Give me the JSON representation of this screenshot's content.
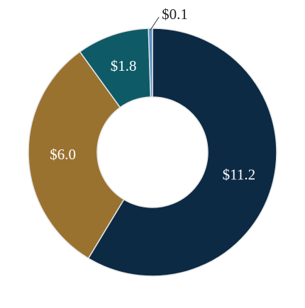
{
  "chart_data": {
    "type": "donut",
    "values": [
      11.2,
      6.0,
      1.8,
      0.1
    ],
    "value_labels": [
      "$11.2",
      "$6.0",
      "$1.8",
      "$0.1"
    ],
    "colors": [
      "#0c2a44",
      "#9a7230",
      "#0f5a67",
      "#5a8fc4"
    ]
  }
}
